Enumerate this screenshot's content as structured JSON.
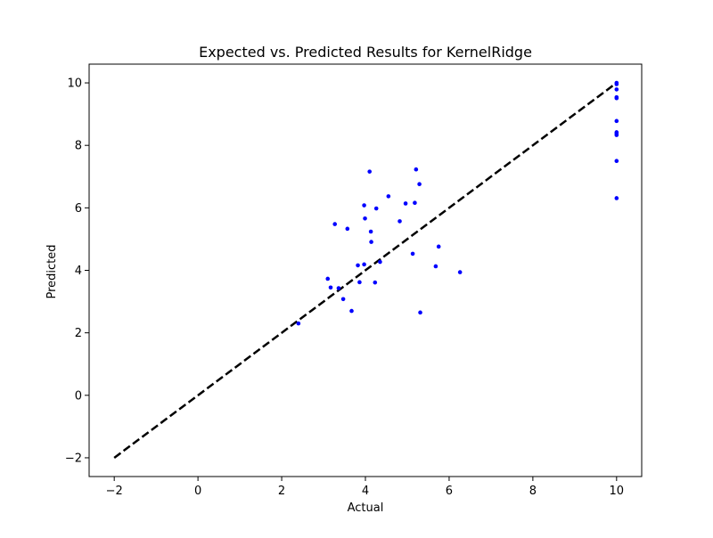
{
  "chart_data": {
    "type": "scatter",
    "title": "Expected vs. Predicted Results for KernelRidge",
    "xlabel": "Actual",
    "ylabel": "Predicted",
    "xlim": [
      -2.6,
      10.6
    ],
    "ylim": [
      -2.6,
      10.6
    ],
    "x_ticks": [
      -2,
      0,
      2,
      4,
      6,
      8,
      10
    ],
    "y_ticks": [
      -2,
      0,
      2,
      4,
      6,
      8,
      10
    ],
    "x_tick_labels": [
      "−2",
      "0",
      "2",
      "4",
      "6",
      "8",
      "10"
    ],
    "y_tick_labels": [
      "−2",
      "0",
      "2",
      "4",
      "6",
      "8",
      "10"
    ],
    "grid": false,
    "legend": "none",
    "series": [
      {
        "kind": "points",
        "color": "#0000ff",
        "x": [
          2.4,
          3.1,
          3.17,
          3.27,
          3.36,
          3.47,
          3.57,
          3.67,
          3.82,
          3.86,
          3.97,
          3.97,
          3.99,
          4.1,
          4.13,
          4.14,
          4.23,
          4.26,
          4.35,
          4.55,
          4.82,
          4.96,
          5.13,
          5.18,
          5.21,
          5.29,
          5.31,
          5.68,
          5.75,
          6.26,
          10.0,
          10.0,
          10.0,
          10.0,
          10.0,
          10.0,
          10.0,
          10.0,
          10.0,
          10.0,
          10.0
        ],
        "y": [
          2.3,
          3.73,
          3.45,
          5.48,
          3.43,
          3.08,
          5.33,
          2.7,
          4.16,
          3.62,
          4.19,
          6.08,
          5.66,
          7.16,
          5.24,
          4.91,
          3.61,
          5.98,
          4.27,
          6.37,
          5.57,
          6.14,
          4.53,
          6.16,
          7.23,
          6.76,
          2.65,
          4.13,
          4.76,
          3.94,
          9.96,
          9.79,
          9.54,
          9.51,
          8.78,
          8.42,
          8.38,
          8.33,
          7.5,
          6.31,
          10.0
        ]
      },
      {
        "kind": "reference-line",
        "color": "#000000",
        "style": "dashed",
        "x": [
          -2,
          10
        ],
        "y": [
          -2,
          10
        ]
      }
    ]
  }
}
